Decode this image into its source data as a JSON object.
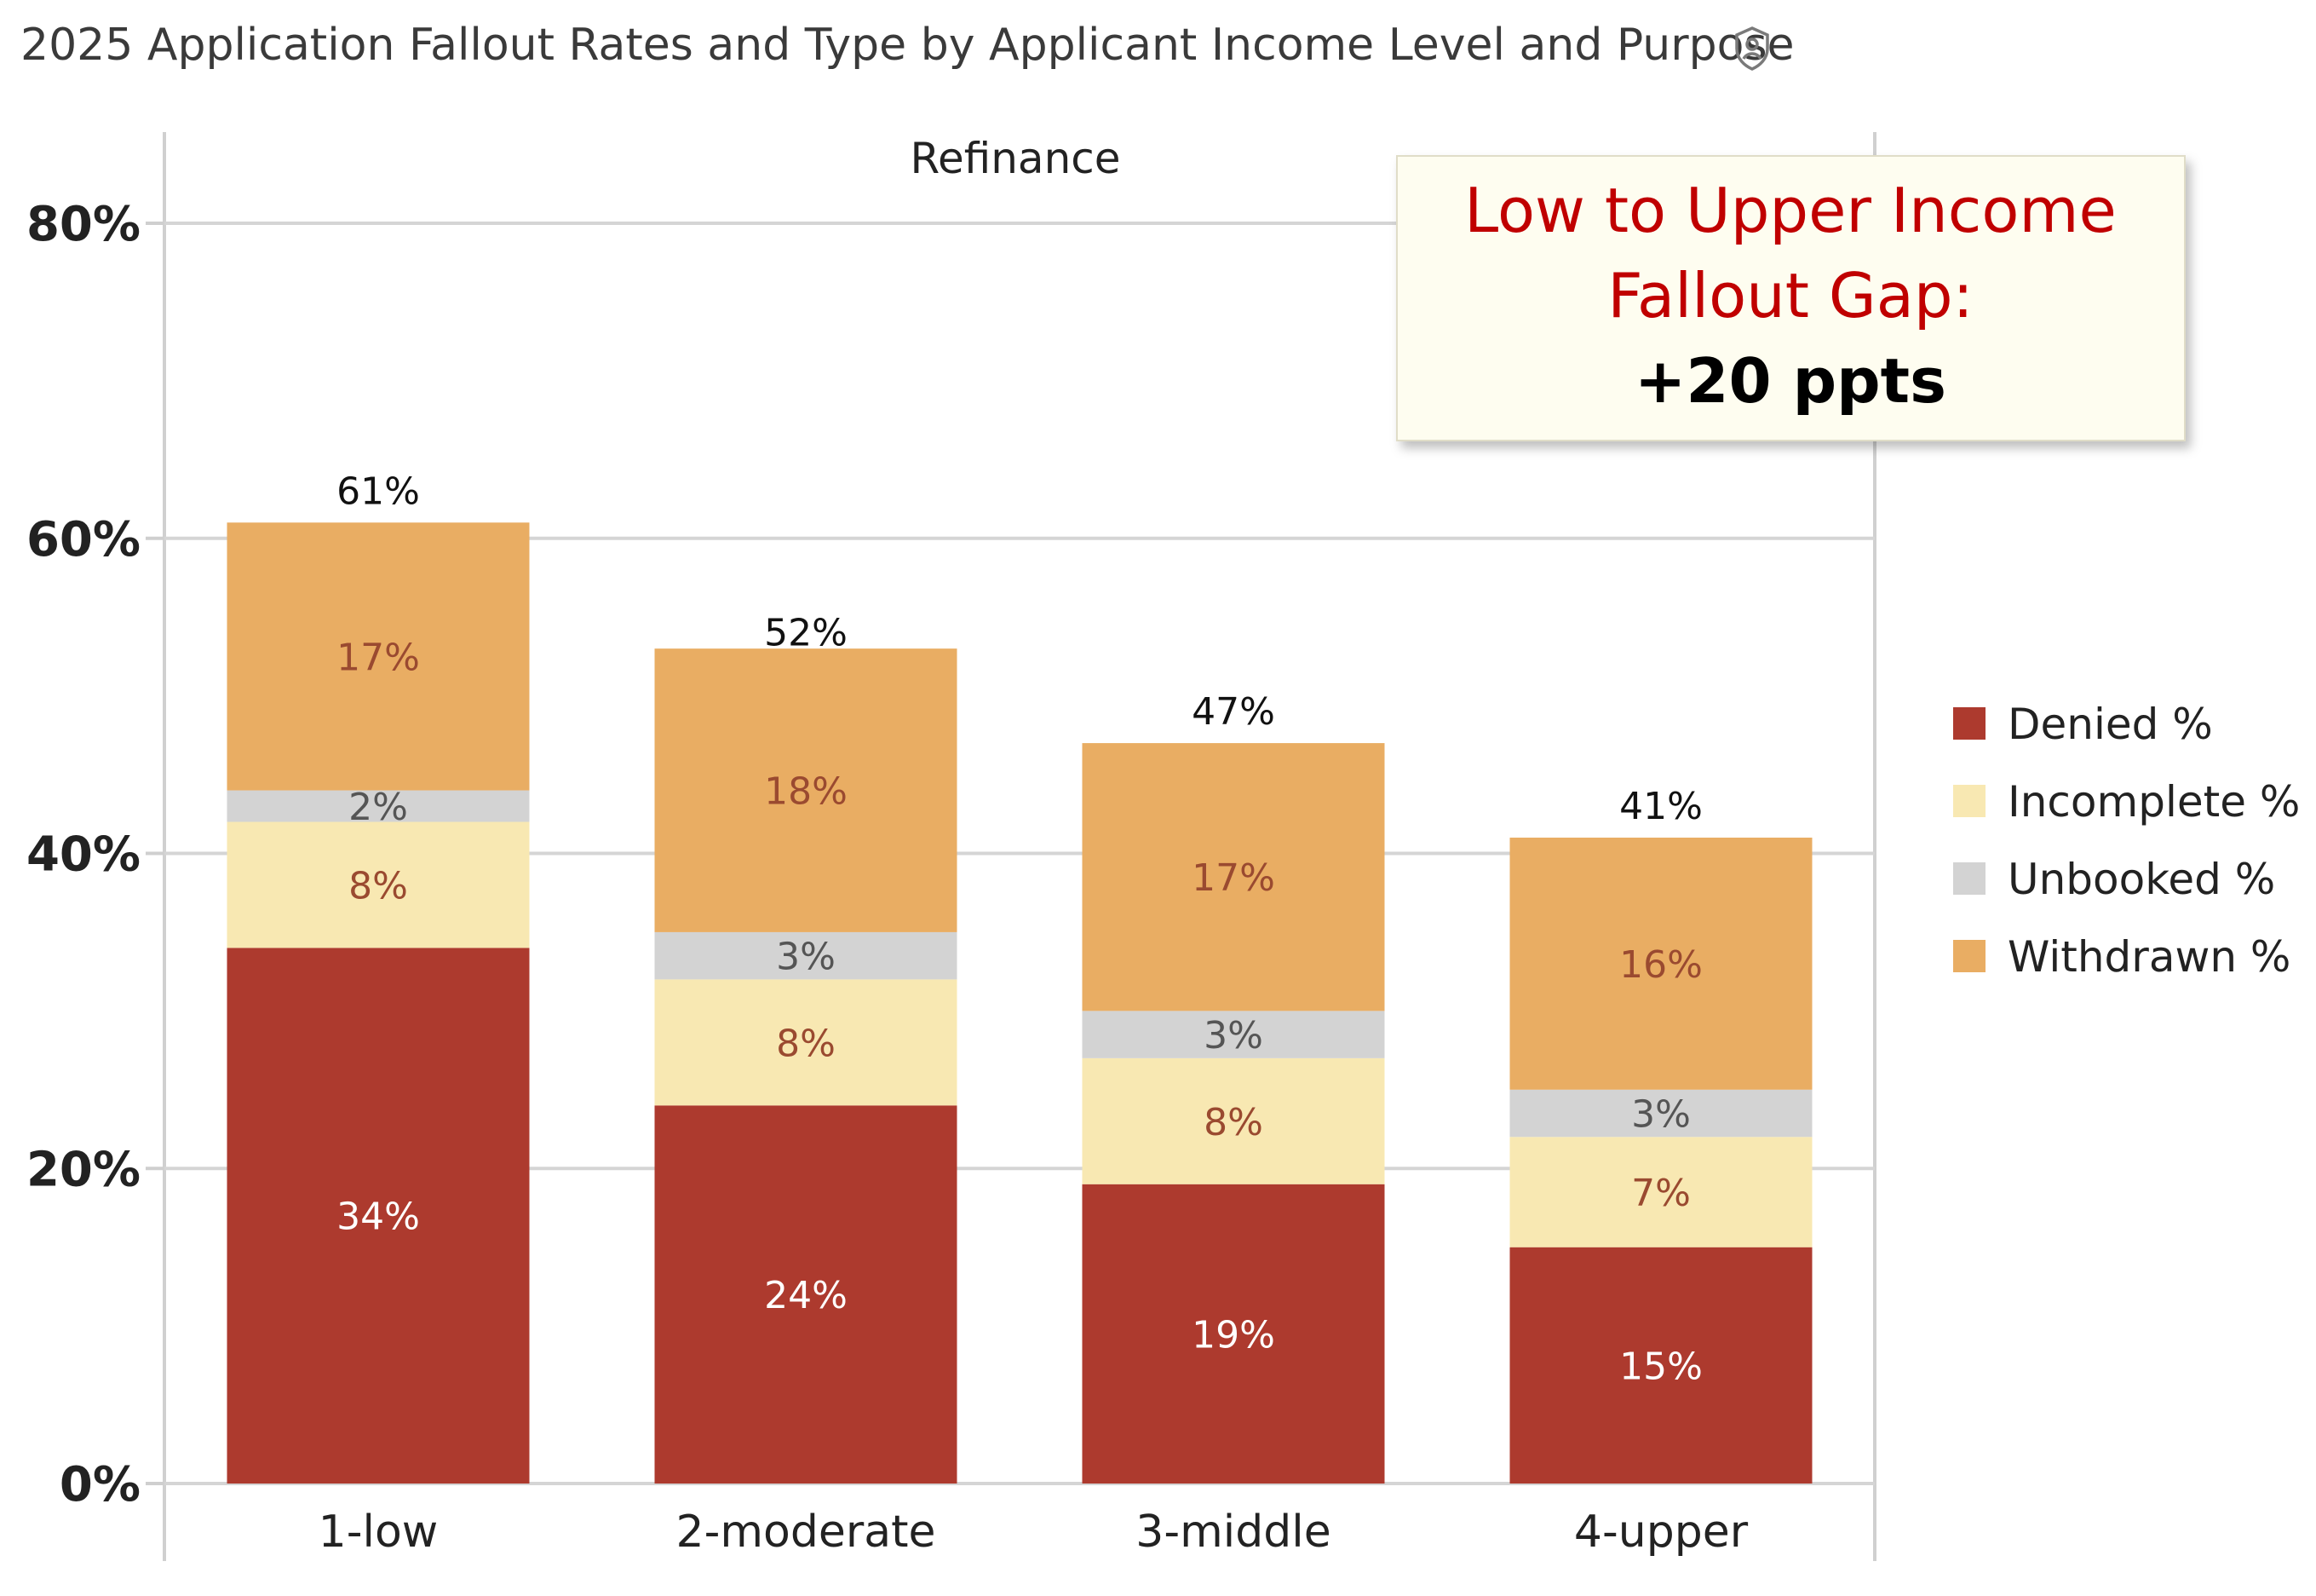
{
  "chart_data": {
    "type": "bar",
    "stacked": true,
    "title": "2025 Application Fallout Rates and Type by Applicant Income Level and Purpose",
    "panel": "Refinance",
    "categories": [
      "1-low",
      "2-moderate",
      "3-middle",
      "4-upper"
    ],
    "series": [
      {
        "name": "Denied %",
        "values": [
          34,
          24,
          19,
          15
        ],
        "labels": [
          "34%",
          "24%",
          "19%",
          "15%"
        ],
        "color": "#ad3a2e",
        "label_color": "#ffffff"
      },
      {
        "name": "Incomplete %",
        "values": [
          8,
          8,
          8,
          7
        ],
        "labels": [
          "8%",
          "8%",
          "8%",
          "7%"
        ],
        "color": "#f8e8b2",
        "label_color": "#9a4a30"
      },
      {
        "name": "Unbooked %",
        "values": [
          2,
          3,
          3,
          3
        ],
        "labels": [
          "2%",
          "3%",
          "3%",
          "3%"
        ],
        "color": "#d3d3d3",
        "label_color": "#555555"
      },
      {
        "name": "Withdrawn %",
        "values": [
          17,
          18,
          17,
          16
        ],
        "labels": [
          "17%",
          "18%",
          "17%",
          "16%"
        ],
        "color": "#e9ad63",
        "label_color": "#9a4a30"
      }
    ],
    "totals": [
      61,
      52,
      47,
      41
    ],
    "total_labels": [
      "61%",
      "52%",
      "47%",
      "41%"
    ],
    "ylim": [
      0,
      80
    ],
    "yticks": [
      0,
      20,
      40,
      60,
      80
    ],
    "ytick_labels": [
      "0%",
      "20%",
      "40%",
      "60%",
      "80%"
    ],
    "xlabel": "",
    "ylabel": "",
    "grid": true,
    "legend_position": "right",
    "annotation": {
      "line1": "Low to Upper Income",
      "line2": "Fallout Gap:",
      "line3": "+20 ppts"
    }
  },
  "icons": {
    "title_icon": "shield-person-icon"
  }
}
